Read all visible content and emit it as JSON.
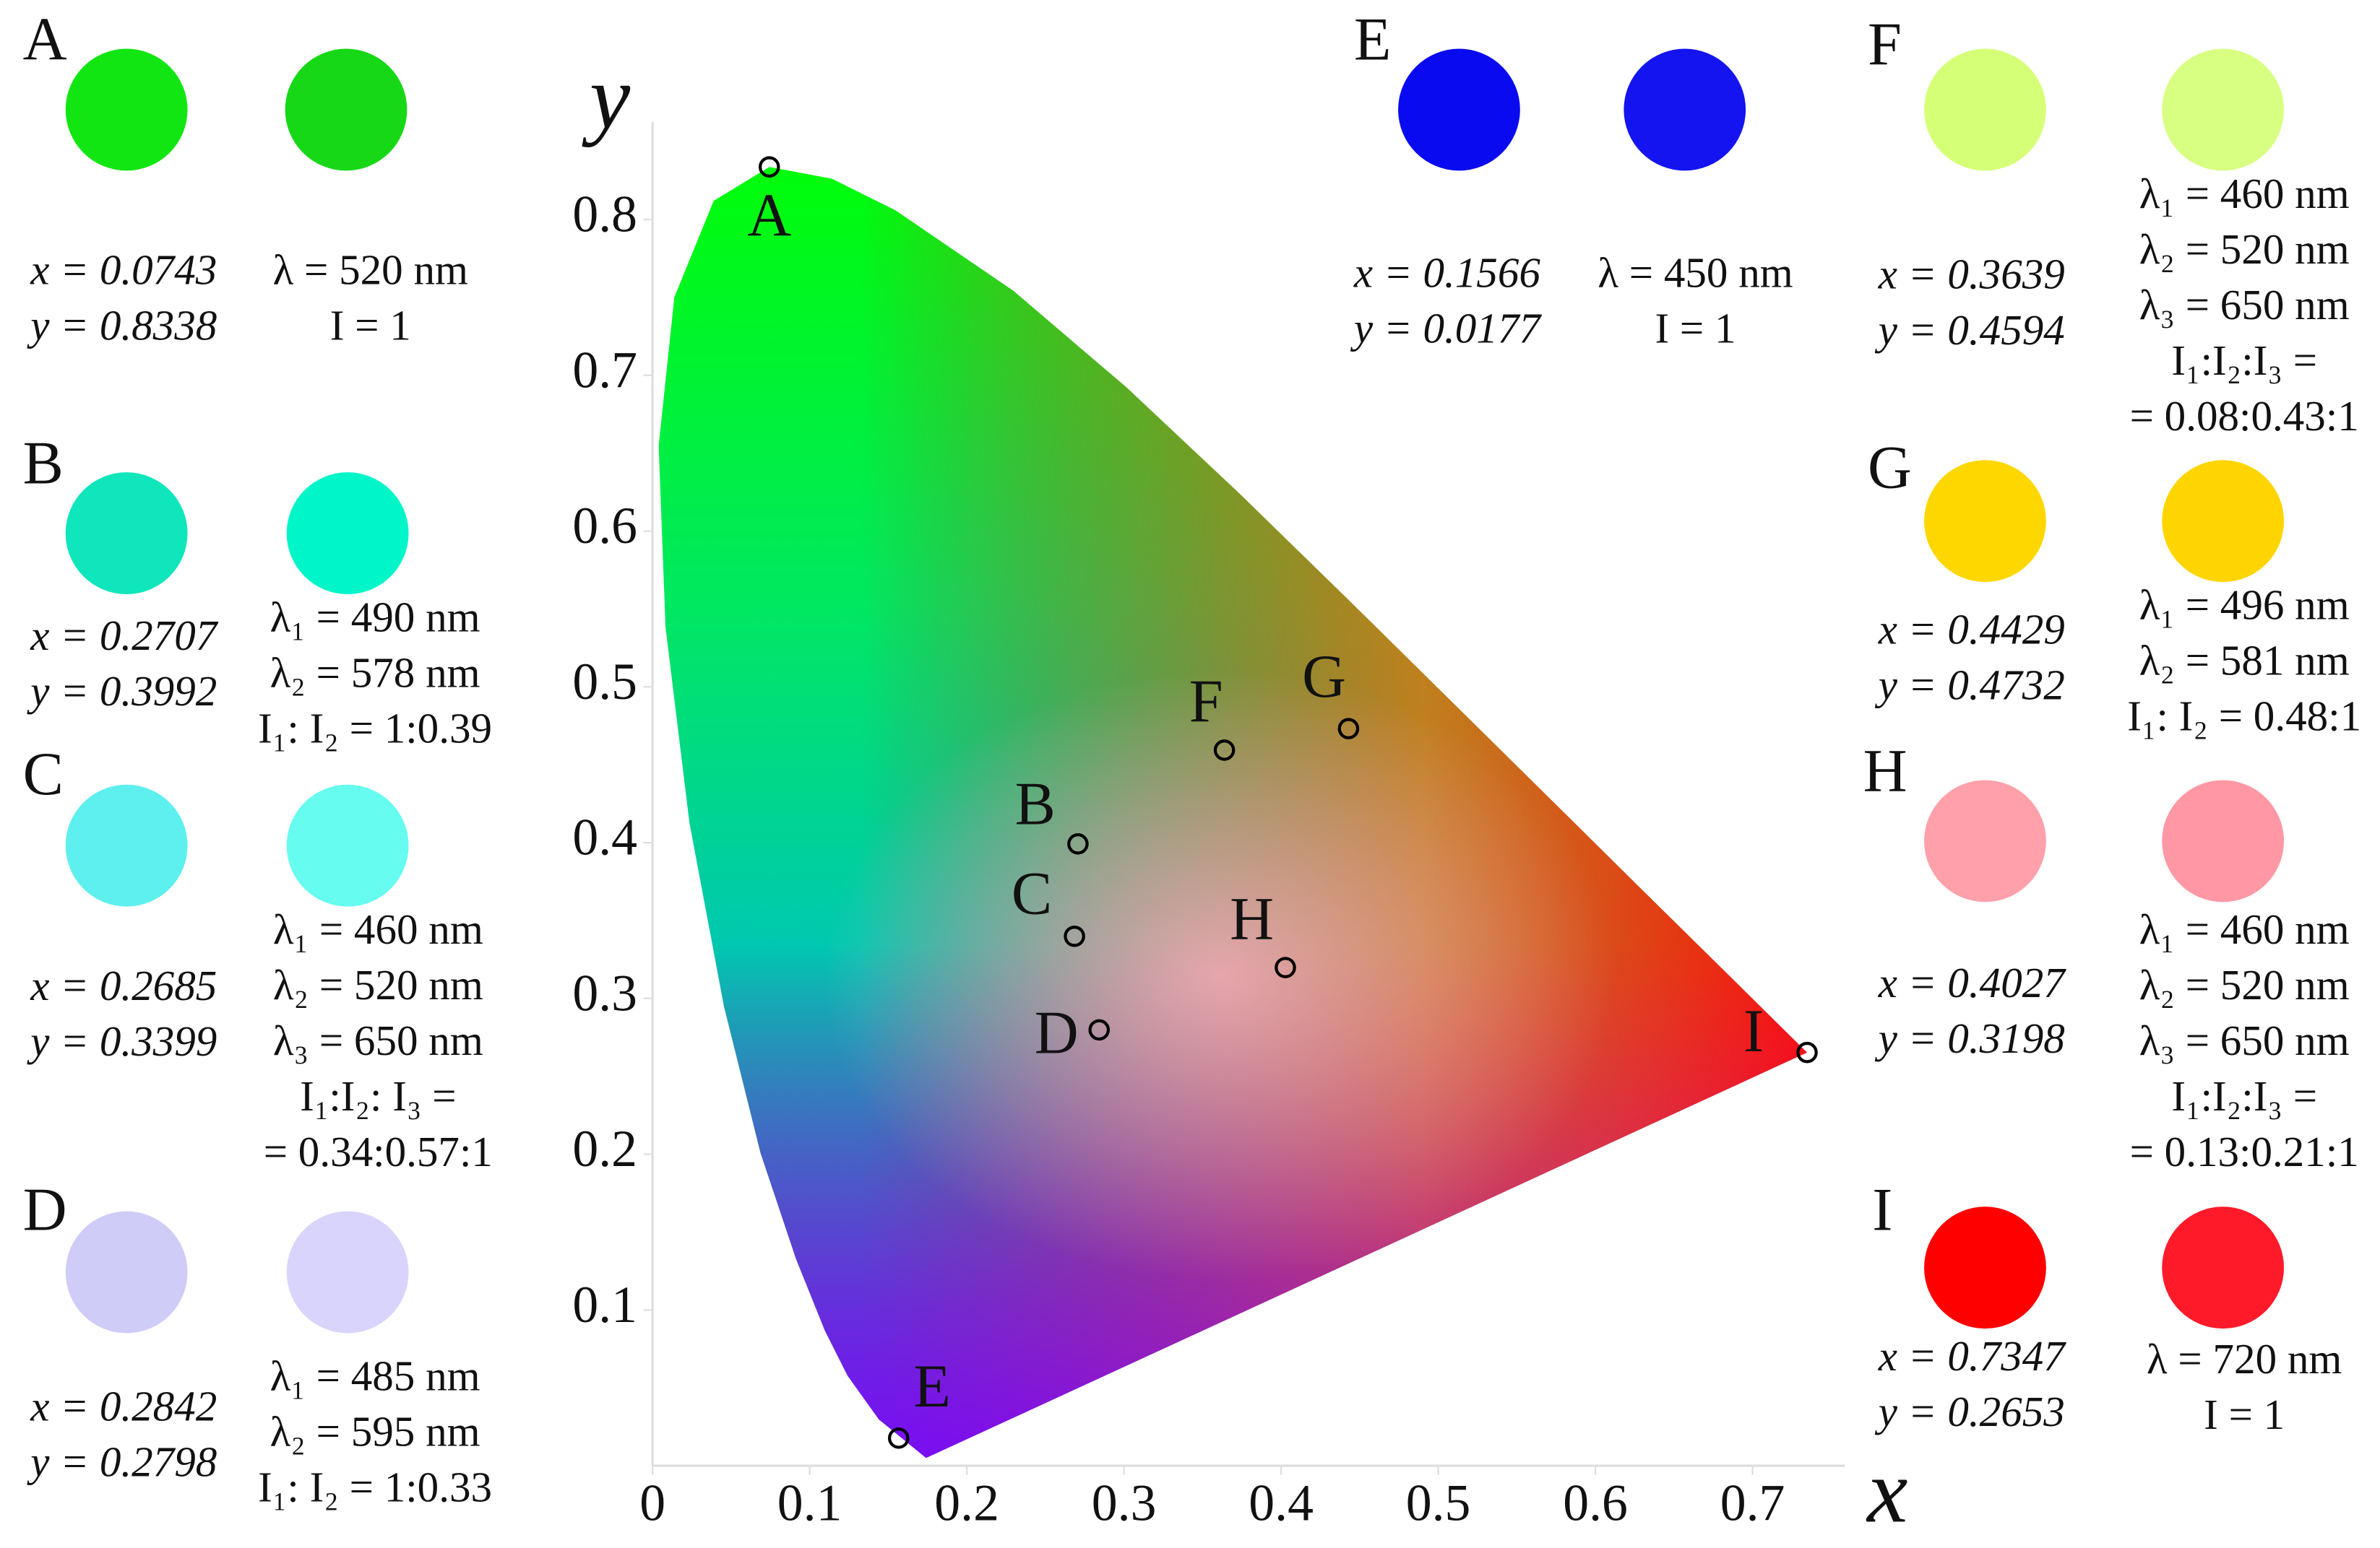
{
  "chart_data": {
    "type": "scatter",
    "x_label": "x",
    "y_label": "y",
    "labels": [
      "A",
      "B",
      "C",
      "D",
      "E",
      "F",
      "G",
      "H",
      "I"
    ],
    "x": [
      0.0743,
      0.2707,
      0.2685,
      0.2842,
      0.1566,
      0.3639,
      0.4429,
      0.4027,
      0.7347
    ],
    "y": [
      0.8338,
      0.3992,
      0.3399,
      0.2798,
      0.0177,
      0.4594,
      0.4732,
      0.3198,
      0.2653
    ],
    "xlim": [
      0,
      0.75
    ],
    "ylim": [
      0,
      0.85
    ],
    "xticks": [
      0,
      0.1,
      0.2,
      0.3,
      0.4,
      0.5,
      0.6,
      0.7
    ],
    "yticks": [
      0.1,
      0.2,
      0.3,
      0.4,
      0.5,
      0.6,
      0.7,
      0.8
    ]
  },
  "panels": [
    {
      "label": "A",
      "colors": [
        "#12e612",
        "#17d817"
      ],
      "x": "x = 0.0743",
      "y": "y = 0.8338",
      "lines": [
        "λ = 520 nm",
        "I = 1"
      ]
    },
    {
      "label": "B",
      "colors": [
        "#10e6bc",
        "#00f6c8"
      ],
      "x": "x = 0.2707",
      "y": "y = 0.3992",
      "lines": [
        "λ₁ = 490 nm",
        "λ₂ = 578 nm",
        "I₁: I₂ = 1:0.39"
      ]
    },
    {
      "label": "C",
      "colors": [
        "#5ef0ee",
        "#66fcf0"
      ],
      "x": "x = 0.2685",
      "y": "y = 0.3399",
      "lines": [
        "λ₁ = 460 nm",
        "λ₂ = 520 nm",
        "λ₃ = 650 nm",
        "I₁:I₂: I₃ =",
        "= 0.34:0.57:1"
      ]
    },
    {
      "label": "D",
      "colors": [
        "#d0ccf8",
        "#d8d4fc"
      ],
      "x": "x = 0.2842",
      "y": "y = 0.2798",
      "lines": [
        "λ₁ = 485 nm",
        "λ₂ = 595 nm",
        "I₁: I₂ = 1:0.33"
      ]
    },
    {
      "label": "E",
      "colors": [
        "#0a0af0",
        "#1414f0"
      ],
      "x": "x = 0.1566",
      "y": "y = 0.0177",
      "lines": [
        "λ = 450 nm",
        "I = 1"
      ]
    },
    {
      "label": "F",
      "colors": [
        "#d6ff78",
        "#d8ff82"
      ],
      "x": "x = 0.3639",
      "y": "y = 0.4594",
      "lines": [
        "λ₁ = 460 nm",
        "λ₂ = 520 nm",
        "λ₃ = 650 nm",
        "I₁:I₂:I₃ =",
        "= 0.08:0.43:1"
      ]
    },
    {
      "label": "G",
      "colors": [
        "#ffd700",
        "#ffd500"
      ],
      "x": "x = 0.4429",
      "y": "y = 0.4732",
      "lines": [
        "λ₁ = 496 nm",
        "λ₂ = 581 nm",
        "I₁: I₂ = 0.48:1"
      ]
    },
    {
      "label": "H",
      "colors": [
        "#ffa0ab",
        "#ff98a4"
      ],
      "x": "x = 0.4027",
      "y": "y = 0.3198",
      "lines": [
        "λ₁ = 460 nm",
        "λ₂ = 520 nm",
        "λ₃ = 650 nm",
        "I₁:I₂:I₃ =",
        "= 0.13:0.21:1"
      ]
    },
    {
      "label": "I",
      "colors": [
        "#ff0000",
        "#ff1a2a"
      ],
      "x": "x = 0.7347",
      "y": "y = 0.2653",
      "lines": [
        "λ = 720 nm",
        "I = 1"
      ]
    }
  ]
}
